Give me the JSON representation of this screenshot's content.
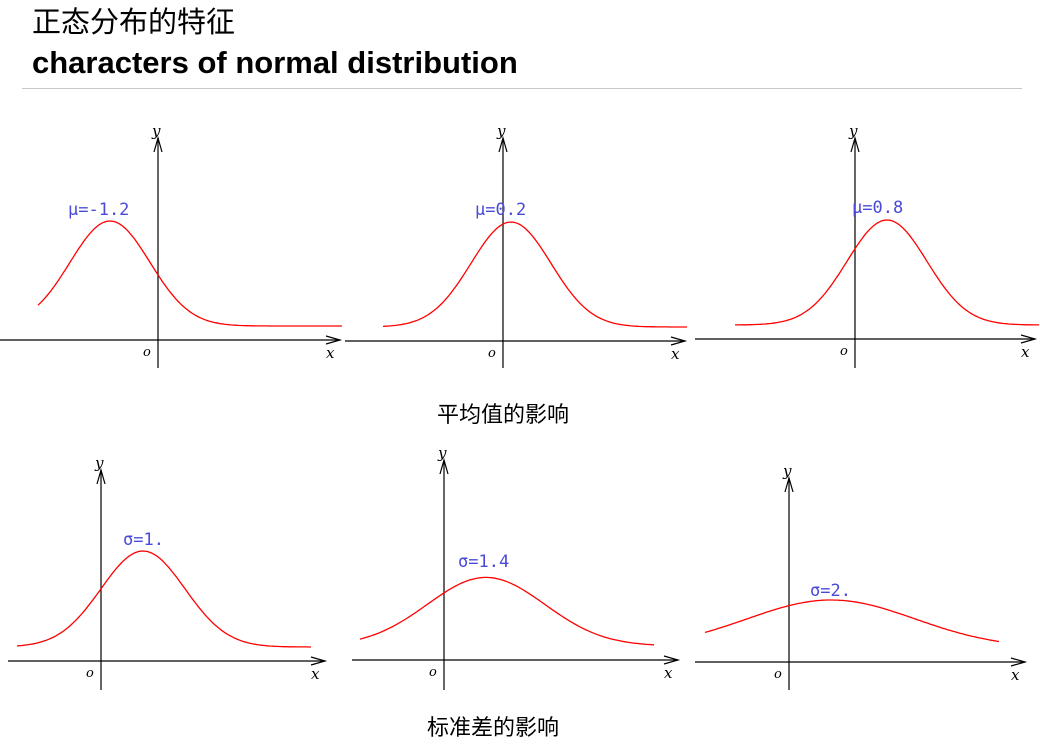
{
  "slide": {
    "title_zh": "正态分布的特征",
    "title_en": "characters of normal distribution",
    "caption_mean": "平均值的影响",
    "caption_sigma": "标准差的影响"
  },
  "axis_labels": {
    "x": "x",
    "y": "y",
    "origin": "o"
  },
  "colors": {
    "curve": "#ff0000",
    "label": "#4a4ad8",
    "axis": "#000000"
  },
  "chart_data": [
    {
      "type": "line",
      "group": "mean",
      "label": "μ=-1.2",
      "mu": -1.2,
      "sigma": 1.0,
      "xlim": [
        -3.0,
        4.6
      ]
    },
    {
      "type": "line",
      "group": "mean",
      "label": "μ=0.2",
      "mu": 0.2,
      "sigma": 1.0,
      "xlim": [
        -3.0,
        4.6
      ]
    },
    {
      "type": "line",
      "group": "mean",
      "label": "μ=0.8",
      "mu": 0.8,
      "sigma": 1.0,
      "xlim": [
        -3.0,
        4.6
      ]
    },
    {
      "type": "line",
      "group": "sigma",
      "label": "σ=1.",
      "mu": 1.0,
      "sigma": 1.0,
      "xlim": [
        -2.0,
        5.0
      ]
    },
    {
      "type": "line",
      "group": "sigma",
      "label": "σ=1.4",
      "mu": 1.0,
      "sigma": 1.4,
      "xlim": [
        -2.0,
        5.0
      ]
    },
    {
      "type": "line",
      "group": "sigma",
      "label": "σ=2.",
      "mu": 1.0,
      "sigma": 2.0,
      "xlim": [
        -2.0,
        5.0
      ]
    }
  ]
}
